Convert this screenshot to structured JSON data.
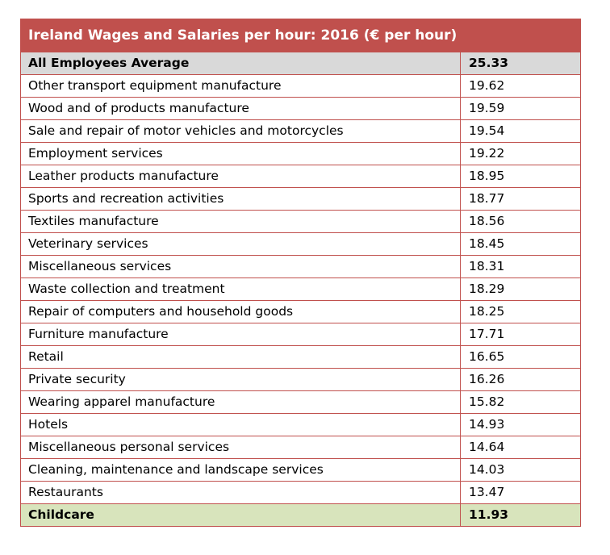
{
  "table": {
    "title": "Ireland Wages and Salaries per hour:  2016 (€ per hour)",
    "colors": {
      "header_background": "#c0504d",
      "border": "#c0504d",
      "average_row_background": "#d9d9d9",
      "childcare_row_background": "#d8e4bc"
    },
    "rows": [
      {
        "name": "All Employees Average",
        "value": "25.33",
        "style": "average"
      },
      {
        "name": "Other transport equipment manufacture",
        "value": "19.62",
        "style": "normal"
      },
      {
        "name": "Wood and of products manufacture",
        "value": "19.59",
        "style": "normal"
      },
      {
        "name": "Sale and repair of motor vehicles and motorcycles",
        "value": "19.54",
        "style": "normal"
      },
      {
        "name": "Employment services",
        "value": "19.22",
        "style": "normal"
      },
      {
        "name": "Leather products manufacture",
        "value": "18.95",
        "style": "normal"
      },
      {
        "name": "Sports and recreation activities",
        "value": "18.77",
        "style": "normal"
      },
      {
        "name": "Textiles manufacture",
        "value": "18.56",
        "style": "normal"
      },
      {
        "name": "Veterinary services",
        "value": "18.45",
        "style": "normal"
      },
      {
        "name": "Miscellaneous services",
        "value": "18.31",
        "style": "normal"
      },
      {
        "name": "Waste collection and treatment",
        "value": "18.29",
        "style": "normal"
      },
      {
        "name": "Repair of computers and household goods",
        "value": "18.25",
        "style": "normal"
      },
      {
        "name": "Furniture manufacture",
        "value": "17.71",
        "style": "normal"
      },
      {
        "name": "Retail",
        "value": "16.65",
        "style": "normal"
      },
      {
        "name": "Private security",
        "value": "16.26",
        "style": "normal"
      },
      {
        "name": "Wearing apparel manufacture",
        "value": "15.82",
        "style": "normal"
      },
      {
        "name": "Hotels",
        "value": "14.93",
        "style": "normal"
      },
      {
        "name": "Miscellaneous personal services",
        "value": "14.64",
        "style": "normal"
      },
      {
        "name": "Cleaning, maintenance and landscape services",
        "value": "14.03",
        "style": "normal"
      },
      {
        "name": "Restaurants",
        "value": "13.47",
        "style": "normal"
      },
      {
        "name": "Childcare",
        "value": "11.93",
        "style": "childcare"
      }
    ]
  }
}
